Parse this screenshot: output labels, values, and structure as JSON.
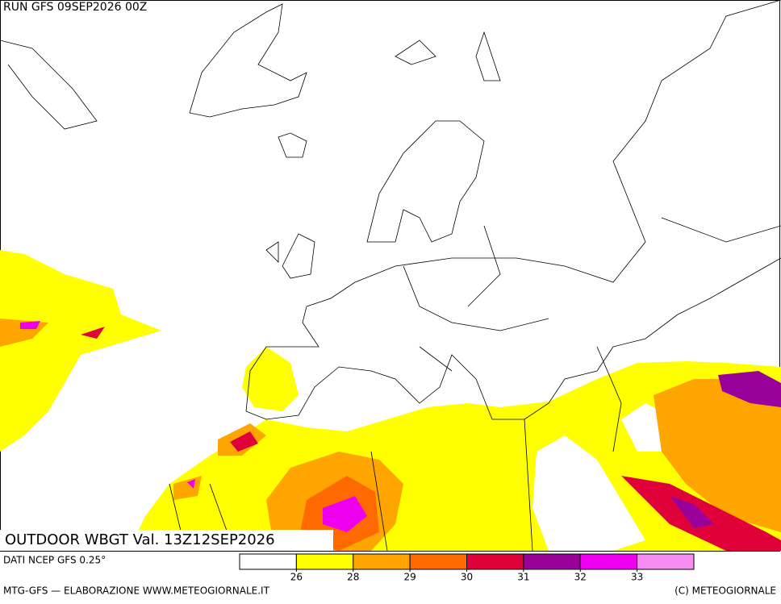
{
  "header": {
    "run": "RUN GFS 09SEP2026 00Z"
  },
  "map": {
    "title": "OUTDOOR WBGT Val. 13Z12SEP2026"
  },
  "legend": {
    "source": "DATI NCEP GFS 0.25°",
    "colors": [
      "#ffffff",
      "#ffff00",
      "#ffa500",
      "#ff6a00",
      "#e0003a",
      "#9a009a",
      "#ee00ee",
      "#f58ef0"
    ],
    "ticks": [
      26,
      28,
      29,
      30,
      31,
      32,
      33
    ]
  },
  "footer": {
    "left": "MTG-GFS — ELABORAZIONE WWW.METEOGIORNALE.IT",
    "right": "(C) METEOGIORNALE"
  }
}
